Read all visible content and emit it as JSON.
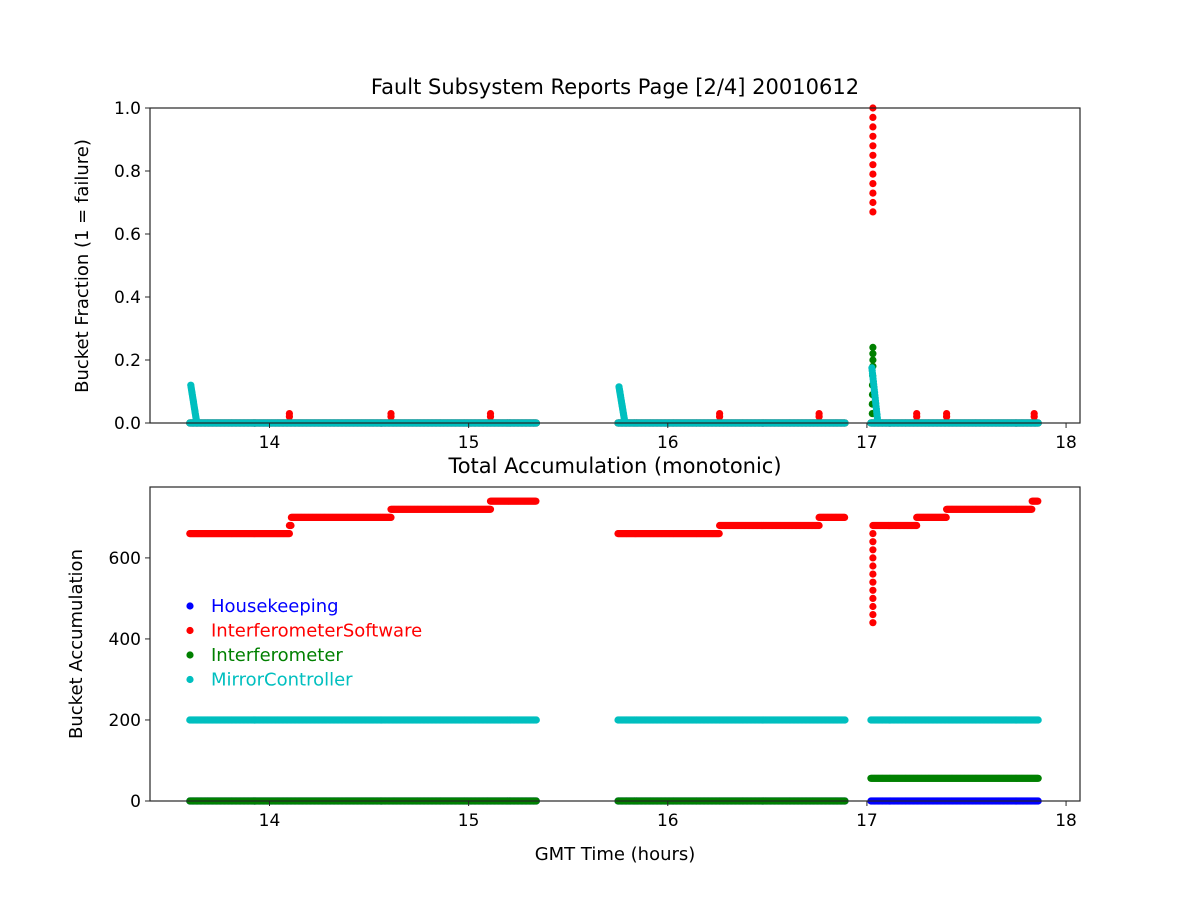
{
  "chart_data": [
    {
      "type": "scatter",
      "title": "Fault Subsystem Reports Page [2/4] 20010612",
      "xlabel": "",
      "ylabel": "Bucket Fraction (1 = failure)",
      "xlim": [
        13.4,
        18.07
      ],
      "ylim": [
        0,
        1.0
      ],
      "xticks": [
        "14",
        "15",
        "16",
        "17",
        "18"
      ],
      "yticks": [
        "0.0",
        "0.2",
        "0.4",
        "0.6",
        "0.8",
        "1.0"
      ],
      "grid": false,
      "series": [
        {
          "color": "#0000ff",
          "steps": [
            [
              13.6,
              15.34,
              0
            ],
            [
              15.75,
              16.89,
              0
            ],
            [
              17.02,
              17.86,
              0
            ]
          ],
          "points": []
        },
        {
          "color": "#ff0000",
          "steps": [
            [
              13.6,
              15.34,
              0
            ],
            [
              15.75,
              16.89,
              0
            ],
            [
              17.02,
              17.86,
              0
            ]
          ],
          "points": [
            [
              14.1,
              0.02
            ],
            [
              14.1,
              0.03
            ],
            [
              14.61,
              0.02
            ],
            [
              14.61,
              0.03
            ],
            [
              15.11,
              0.02
            ],
            [
              15.11,
              0.03
            ],
            [
              16.26,
              0.02
            ],
            [
              16.26,
              0.03
            ],
            [
              16.76,
              0.02
            ],
            [
              16.76,
              0.03
            ],
            [
              17.25,
              0.02
            ],
            [
              17.25,
              0.03
            ],
            [
              17.4,
              0.02
            ],
            [
              17.4,
              0.03
            ],
            [
              17.84,
              0.02
            ],
            [
              17.84,
              0.03
            ],
            [
              17.03,
              0.67
            ],
            [
              17.03,
              0.7
            ],
            [
              17.03,
              0.73
            ],
            [
              17.03,
              0.76
            ],
            [
              17.03,
              0.79
            ],
            [
              17.03,
              0.82
            ],
            [
              17.03,
              0.85
            ],
            [
              17.03,
              0.88
            ],
            [
              17.03,
              0.91
            ],
            [
              17.03,
              0.94
            ],
            [
              17.03,
              0.97
            ],
            [
              17.03,
              1.0
            ]
          ]
        },
        {
          "color": "#008000",
          "steps": [
            [
              13.6,
              15.34,
              0
            ],
            [
              15.75,
              16.89,
              0
            ],
            [
              17.02,
              17.86,
              0
            ]
          ],
          "points": [
            [
              17.027,
              0.03
            ],
            [
              17.027,
              0.06
            ],
            [
              17.028,
              0.09
            ],
            [
              17.028,
              0.12
            ],
            [
              17.029,
              0.15
            ],
            [
              17.03,
              0.18
            ],
            [
              17.03,
              0.2
            ],
            [
              17.03,
              0.22
            ],
            [
              17.03,
              0.24
            ]
          ]
        },
        {
          "color": "#00bfbf",
          "steps": [
            [
              13.6,
              15.34,
              0
            ],
            [
              15.75,
              16.89,
              0
            ],
            [
              17.02,
              17.86,
              0
            ]
          ],
          "decays": [
            [
              13.605,
              13.635,
              0.12
            ],
            [
              15.755,
              15.785,
              0.115
            ],
            [
              17.025,
              17.055,
              0.175
            ]
          ]
        }
      ]
    },
    {
      "type": "scatter",
      "title": "Total Accumulation (monotonic)",
      "xlabel": "GMT Time (hours)",
      "ylabel": "Bucket Accumulation",
      "xlim": [
        13.4,
        18.07
      ],
      "ylim": [
        0,
        775
      ],
      "xticks": [
        "14",
        "15",
        "16",
        "17",
        "18"
      ],
      "yticks": [
        "0",
        "200",
        "400",
        "600"
      ],
      "grid": false,
      "legend_position": "center-left",
      "series": [
        {
          "name": "Housekeeping",
          "color": "#0000ff",
          "steps": [
            [
              13.6,
              15.34,
              0
            ],
            [
              15.75,
              16.89,
              0
            ],
            [
              17.02,
              17.86,
              0
            ]
          ],
          "points": []
        },
        {
          "name": "InterferometerSoftware",
          "color": "#ff0000",
          "steps": [
            [
              13.6,
              14.1,
              660
            ],
            [
              14.1,
              14.11,
              680
            ],
            [
              14.11,
              14.61,
              700
            ],
            [
              14.61,
              15.11,
              720
            ],
            [
              15.11,
              15.34,
              740
            ],
            [
              15.75,
              16.26,
              660
            ],
            [
              16.26,
              16.76,
              680
            ],
            [
              16.76,
              16.89,
              700
            ],
            [
              17.03,
              17.25,
              680
            ],
            [
              17.25,
              17.4,
              700
            ],
            [
              17.4,
              17.83,
              720
            ],
            [
              17.83,
              17.86,
              740
            ]
          ],
          "points": [
            [
              17.03,
              440
            ],
            [
              17.03,
              460
            ],
            [
              17.03,
              480
            ],
            [
              17.03,
              500
            ],
            [
              17.03,
              520
            ],
            [
              17.03,
              540
            ],
            [
              17.03,
              560
            ],
            [
              17.03,
              580
            ],
            [
              17.03,
              600
            ],
            [
              17.03,
              620
            ],
            [
              17.03,
              640
            ],
            [
              17.03,
              660
            ]
          ]
        },
        {
          "name": "Interferometer",
          "color": "#008000",
          "steps": [
            [
              13.6,
              15.34,
              0
            ],
            [
              15.75,
              16.89,
              0
            ],
            [
              17.02,
              17.86,
              56
            ]
          ],
          "points": []
        },
        {
          "name": "MirrorController",
          "color": "#00bfbf",
          "steps": [
            [
              13.6,
              15.34,
              200
            ],
            [
              15.75,
              16.89,
              200
            ],
            [
              17.02,
              17.86,
              200
            ]
          ],
          "points": []
        }
      ]
    }
  ]
}
